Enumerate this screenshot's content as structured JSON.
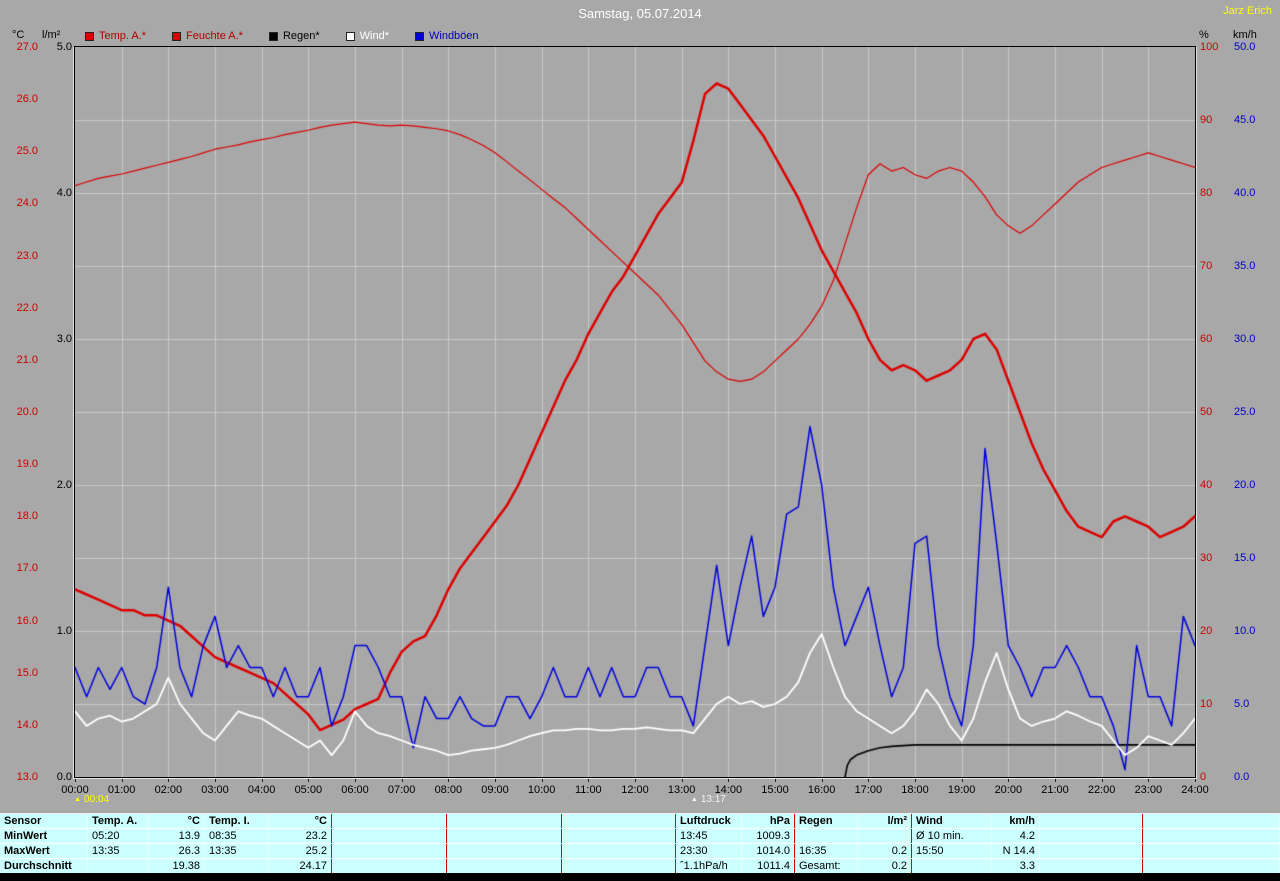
{
  "window": {
    "title": "Samstag, 05.07.2014",
    "author": "Jarz Erich"
  },
  "colors": {
    "background": "#a8a8a8",
    "grid": "#c8c8c8",
    "plot_border": "#000000",
    "temp": "#dc0000",
    "humidity": "#dc0000",
    "rain": "#000000",
    "wind": "#ffffff",
    "gusts": "#0000dd",
    "table_background": "#ccffff",
    "table_divider": "#dd0000",
    "title_text": "#ffffff",
    "author_text": "#ffff00"
  },
  "axes": {
    "temp": {
      "unit": "°C",
      "color": "#cc0000",
      "ticks": [
        "27.0",
        "26.0",
        "25.0",
        "24.0",
        "23.0",
        "22.0",
        "21.0",
        "20.0",
        "19.0",
        "18.0",
        "17.0",
        "16.0",
        "15.0",
        "14.0",
        "13.0"
      ]
    },
    "rain": {
      "unit": "l/m²",
      "color": "#000000",
      "ticks": [
        "5.0",
        "4.0",
        "3.0",
        "2.0",
        "1.0",
        "0.0"
      ]
    },
    "humidity": {
      "unit": "%",
      "color": "#cc0000",
      "ticks": [
        "100",
        "90",
        "80",
        "70",
        "60",
        "50",
        "40",
        "30",
        "20",
        "10",
        "0"
      ]
    },
    "wind": {
      "unit": "km/h",
      "color": "#0000cc",
      "ticks": [
        "50.0",
        "45.0",
        "40.0",
        "35.0",
        "30.0",
        "25.0",
        "20.0",
        "15.0",
        "10.0",
        "5.0",
        "0.0"
      ]
    },
    "x": {
      "color": "#000000",
      "ticks": [
        "00:00",
        "01:00",
        "02:00",
        "03:00",
        "04:00",
        "05:00",
        "06:00",
        "07:00",
        "08:00",
        "09:00",
        "10:00",
        "11:00",
        "12:00",
        "13:00",
        "14:00",
        "15:00",
        "16:00",
        "17:00",
        "18:00",
        "19:00",
        "20:00",
        "21:00",
        "22:00",
        "23:00",
        "24:00"
      ]
    }
  },
  "legend": [
    {
      "label": "Temp. A.*",
      "color": "#dc0000",
      "text_color": "#b00000"
    },
    {
      "label": "Feuchte A.*",
      "color": "#dc0000",
      "text_color": "#b00000"
    },
    {
      "label": "Regen*",
      "color": "#000000",
      "text_color": "#000000"
    },
    {
      "label": "Wind*",
      "color": "#ffffff",
      "text_color": "#ffffff"
    },
    {
      "label": "Windböen",
      "color": "#0000dd",
      "text_color": "#0000bb"
    }
  ],
  "markers": [
    {
      "time": "00:04",
      "color": "#ffff00"
    },
    {
      "time": "13:17",
      "color": "#f5f5f5"
    }
  ],
  "chart_data": {
    "type": "line",
    "title": "Samstag, 05.07.2014",
    "x_unit": "hours",
    "x_range": [
      0,
      24
    ],
    "step_hours": 0.25,
    "grid": {
      "vertical_every_hours": 1,
      "horizontal_rows": 10
    },
    "series": [
      {
        "name": "Temp. A.*",
        "unit": "°C",
        "axis_range": [
          13,
          27
        ],
        "color": "#dc0000",
        "values": [
          16.6,
          16.5,
          16.4,
          16.3,
          16.2,
          16.2,
          16.1,
          16.1,
          16.0,
          15.9,
          15.7,
          15.5,
          15.3,
          15.2,
          15.1,
          15.0,
          14.9,
          14.8,
          14.6,
          14.4,
          14.2,
          13.9,
          14.0,
          14.1,
          14.3,
          14.4,
          14.5,
          15.0,
          15.4,
          15.6,
          15.7,
          16.1,
          16.6,
          17.0,
          17.3,
          17.6,
          17.9,
          18.2,
          18.6,
          19.1,
          19.6,
          20.1,
          20.6,
          21.0,
          21.5,
          21.9,
          22.3,
          22.6,
          23.0,
          23.4,
          23.8,
          24.1,
          24.4,
          25.2,
          26.1,
          26.3,
          26.2,
          25.9,
          25.6,
          25.3,
          24.9,
          24.5,
          24.1,
          23.6,
          23.1,
          22.7,
          22.3,
          21.9,
          21.4,
          21.0,
          20.8,
          20.9,
          20.8,
          20.6,
          20.7,
          20.8,
          21.0,
          21.4,
          21.5,
          21.2,
          20.6,
          20.0,
          19.4,
          18.9,
          18.5,
          18.1,
          17.8,
          17.7,
          17.6,
          17.9,
          18.0,
          17.9,
          17.8,
          17.6,
          17.7,
          17.8,
          18.0
        ]
      },
      {
        "name": "Feuchte A.*",
        "unit": "%",
        "axis_range": [
          0,
          100
        ],
        "color": "#dc0000",
        "values": [
          81.0,
          81.5,
          82.0,
          82.3,
          82.6,
          83.0,
          83.4,
          83.8,
          84.2,
          84.6,
          85.0,
          85.5,
          86.0,
          86.3,
          86.6,
          87.0,
          87.3,
          87.6,
          88.0,
          88.3,
          88.6,
          89.0,
          89.3,
          89.5,
          89.7,
          89.5,
          89.3,
          89.2,
          89.3,
          89.2,
          89.0,
          88.8,
          88.5,
          88.0,
          87.3,
          86.5,
          85.5,
          84.3,
          83.0,
          81.8,
          80.5,
          79.2,
          78.0,
          76.5,
          75.0,
          73.5,
          72.0,
          70.5,
          69.0,
          67.5,
          66.0,
          64.0,
          62.0,
          59.5,
          57.0,
          55.5,
          54.5,
          54.2,
          54.5,
          55.5,
          57.0,
          58.5,
          60.0,
          62.0,
          64.5,
          68.0,
          73.0,
          78.0,
          82.5,
          84.0,
          83.0,
          83.5,
          82.5,
          82.0,
          83.0,
          83.5,
          83.0,
          81.5,
          79.5,
          77.0,
          75.5,
          74.5,
          75.5,
          77.0,
          78.5,
          80.0,
          81.5,
          82.5,
          83.5,
          84.0,
          84.5,
          85.0,
          85.5,
          85.0,
          84.5,
          84.0,
          83.5
        ]
      },
      {
        "name": "Wind*",
        "unit": "km/h",
        "axis_range": [
          0,
          50
        ],
        "color": "#ffffff",
        "values": [
          4.5,
          3.5,
          4.0,
          4.2,
          3.8,
          4.0,
          4.5,
          5.0,
          6.8,
          5.0,
          4.0,
          3.0,
          2.5,
          3.5,
          4.5,
          4.2,
          4.0,
          3.5,
          3.0,
          2.5,
          2.0,
          2.5,
          1.5,
          2.5,
          4.5,
          3.5,
          3.0,
          2.8,
          2.5,
          2.2,
          2.0,
          1.8,
          1.5,
          1.6,
          1.8,
          1.9,
          2.0,
          2.2,
          2.5,
          2.8,
          3.0,
          3.2,
          3.2,
          3.3,
          3.3,
          3.2,
          3.2,
          3.3,
          3.3,
          3.4,
          3.3,
          3.2,
          3.2,
          3.0,
          4.0,
          5.0,
          5.5,
          5.0,
          5.2,
          4.8,
          5.0,
          5.5,
          6.5,
          8.5,
          9.8,
          7.5,
          5.5,
          4.5,
          4.0,
          3.5,
          3.0,
          3.5,
          4.5,
          6.0,
          5.0,
          3.5,
          2.5,
          4.0,
          6.5,
          8.5,
          6.0,
          4.0,
          3.5,
          3.8,
          4.0,
          4.5,
          4.2,
          3.8,
          3.5,
          2.5,
          1.5,
          2.0,
          2.8,
          2.5,
          2.2,
          3.0,
          4.0
        ]
      },
      {
        "name": "Windböen",
        "unit": "km/h",
        "axis_range": [
          0,
          50
        ],
        "color": "#0000dd",
        "values": [
          7.5,
          5.5,
          7.5,
          6.0,
          7.5,
          5.5,
          5.0,
          7.5,
          13.0,
          7.5,
          5.5,
          9.0,
          11.0,
          7.5,
          9.0,
          7.5,
          7.5,
          5.5,
          7.5,
          5.5,
          5.5,
          7.5,
          3.5,
          5.5,
          9.0,
          9.0,
          7.5,
          5.5,
          5.5,
          2.0,
          5.5,
          4.0,
          4.0,
          5.5,
          4.0,
          3.5,
          3.5,
          5.5,
          5.5,
          4.0,
          5.5,
          7.5,
          5.5,
          5.5,
          7.5,
          5.5,
          7.5,
          5.5,
          5.5,
          7.5,
          7.5,
          5.5,
          5.5,
          3.5,
          9.0,
          14.5,
          9.0,
          13.0,
          16.5,
          11.0,
          13.0,
          18.0,
          18.5,
          24.0,
          20.0,
          13.0,
          9.0,
          11.0,
          13.0,
          9.0,
          5.5,
          7.5,
          16.0,
          16.5,
          9.0,
          5.5,
          3.5,
          9.0,
          22.5,
          16.0,
          9.0,
          7.5,
          5.5,
          7.5,
          7.5,
          9.0,
          7.5,
          5.5,
          5.5,
          3.5,
          0.5,
          9.0,
          5.5,
          5.5,
          3.5,
          11.0,
          9.0
        ]
      }
    ],
    "rain": {
      "name": "Regen*",
      "unit": "l/m²",
      "axis_range": [
        0,
        5
      ],
      "color": "#000000",
      "t": [
        16.5,
        16.55,
        16.62,
        16.75,
        17.0,
        17.25,
        17.5,
        18.0,
        24.0
      ],
      "values": [
        0.0,
        0.08,
        0.12,
        0.15,
        0.18,
        0.2,
        0.21,
        0.22,
        0.22
      ]
    }
  },
  "table": {
    "header": {
      "sensor": "Sensor",
      "temp_a": "Temp. A.",
      "temp_a_unit": "°C",
      "temp_i": "Temp. I.",
      "temp_i_unit": "°C",
      "luftdruck": "Luftdruck",
      "luftdruck_unit": "hPa",
      "regen": "Regen",
      "regen_unit": "l/m²",
      "wind": "Wind",
      "wind_unit": "km/h"
    },
    "rows": [
      {
        "label": "MinWert",
        "temp_a_time": "05:20",
        "temp_a": "13.9",
        "temp_i_time": "08:35",
        "temp_i": "23.2",
        "druck_time": "13:45",
        "druck": "1009.3",
        "regen_time": "",
        "regen": "",
        "wind_time": "Ø 10 min.",
        "wind": "4.2"
      },
      {
        "label": "MaxWert",
        "temp_a_time": "13:35",
        "temp_a": "26.3",
        "temp_i_time": "13:35",
        "temp_i": "25.2",
        "druck_time": "23:30",
        "druck": "1014.0",
        "regen_time": "16:35",
        "regen": "0.2",
        "wind_time": "15:50",
        "wind": "N 14.4"
      },
      {
        "label": "Durchschnitt",
        "temp_a_time": "",
        "temp_a": "19.38",
        "temp_i_time": "",
        "temp_i": "24.17",
        "druck_time": "ˆ1.1hPa/h",
        "druck": "1011.4",
        "regen_time": "Gesamt:",
        "regen": "0.2",
        "wind_time": "",
        "wind": "3.3"
      }
    ]
  }
}
